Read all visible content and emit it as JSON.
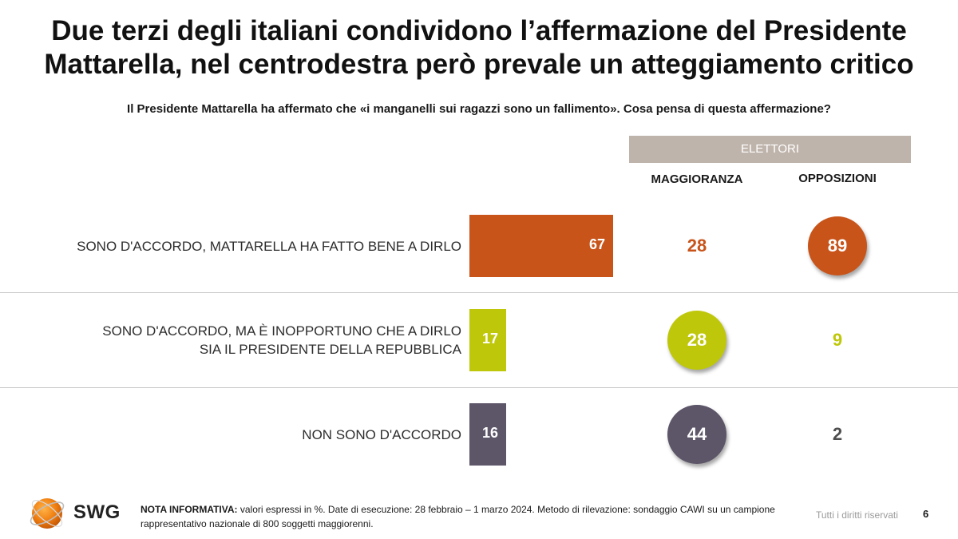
{
  "header": {
    "title_line1": "Due terzi degli italiani condividono l’affermazione del Presidente",
    "title_line2": "Mattarella, nel centrodestra però prevale un atteggiamento critico"
  },
  "chart_data": {
    "type": "bar",
    "title": "Due terzi degli italiani condividono l’affermazione del Presidente Mattarella, nel centrodestra però prevale un atteggiamento critico",
    "subtitle": "Il Presidente Mattarella ha affermato che «i manganelli sui ragazzi sono un fallimento». Cosa pensa di questa affermazione?",
    "orientation": "horizontal",
    "unit": "%",
    "xlim": [
      0,
      67
    ],
    "group_header": "ELETTORI",
    "columns": [
      "MAGGIORANZA",
      "OPPOSIZIONI"
    ],
    "categories": [
      {
        "label_lines": [
          "SONO D'ACCORDO, MATTARELLA HA FATTO BENE A DIRLO"
        ],
        "total": 67,
        "maggioranza": 28,
        "opposizioni": 89,
        "color": "#c8541a",
        "circled": "opposizioni",
        "text_color": "#c8541a"
      },
      {
        "label_lines": [
          "SONO D'ACCORDO, MA È INOPPORTUNO CHE A DIRLO",
          "SIA IL PRESIDENTE DELLA REPUBBLICA"
        ],
        "total": 17,
        "maggioranza": 28,
        "opposizioni": 9,
        "color": "#bfc70a",
        "circled": "maggioranza",
        "text_color": "#bfc70a"
      },
      {
        "label_lines": [
          "NON SONO D'ACCORDO"
        ],
        "total": 16,
        "maggioranza": 44,
        "opposizioni": 2,
        "color": "#5d5568",
        "circled": "maggioranza",
        "text_color": "#4d4d4d"
      }
    ]
  },
  "colors": {
    "band": "#bfb4ab"
  },
  "footer": {
    "logo_text": "SWG",
    "note_label": "NOTA INFORMATIVA:",
    "note_line1": " valori espressi in %. Date di esecuzione: 28 febbraio – 1 marzo 2024. Metodo di rilevazione: sondaggio CAWI su un campione",
    "note_line2": "rappresentativo nazionale di 800 soggetti maggiorenni.",
    "rights": "Tutti i diritti riservati",
    "page_number": "6"
  }
}
